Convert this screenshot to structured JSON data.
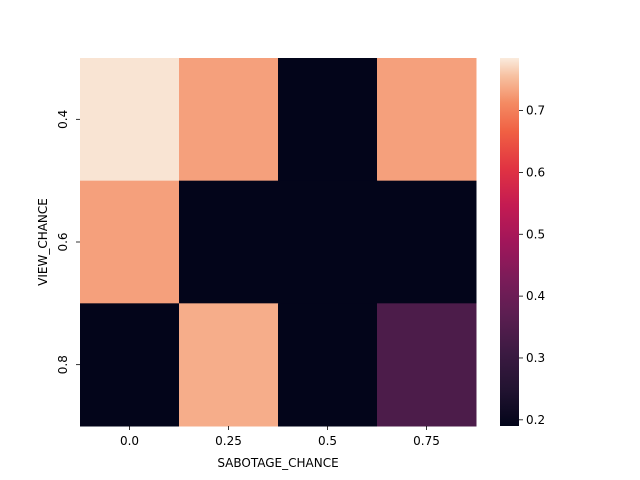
{
  "chart_data": {
    "type": "heatmap",
    "xlabel": "SABOTAGE_CHANCE",
    "ylabel": "VIEW_CHANCE",
    "x_categories": [
      "0.0",
      "0.25",
      "0.5",
      "0.75"
    ],
    "y_categories": [
      "0.4",
      "0.6",
      "0.8"
    ],
    "values": [
      [
        0.78,
        0.73,
        0.19,
        0.73
      ],
      [
        0.73,
        0.19,
        0.19,
        0.19
      ],
      [
        0.19,
        0.74,
        0.19,
        0.34
      ]
    ],
    "colorbar": {
      "min": 0.19,
      "max": 0.785,
      "ticks": [
        0.2,
        0.3,
        0.4,
        0.5,
        0.6,
        0.7
      ],
      "tick_labels": [
        "0.2",
        "0.3",
        "0.4",
        "0.5",
        "0.6",
        "0.7"
      ]
    },
    "colormap": "rocket"
  }
}
